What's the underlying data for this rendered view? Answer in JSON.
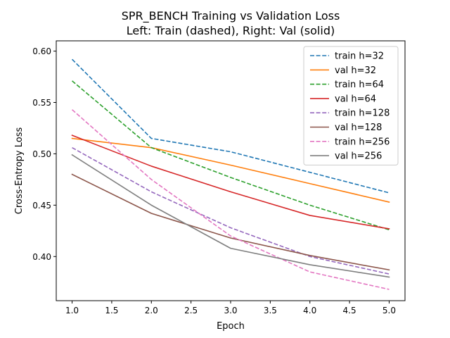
{
  "chart_data": {
    "type": "line",
    "title": "SPR_BENCH Training vs Validation Loss",
    "subtitle": "Left: Train (dashed), Right: Val (solid)",
    "xlabel": "Epoch",
    "ylabel": "Cross-Entropy Loss",
    "xlim": [
      0.8,
      5.2
    ],
    "ylim": [
      0.357,
      0.61
    ],
    "x_ticks": [
      "1.0",
      "1.5",
      "2.0",
      "2.5",
      "3.0",
      "3.5",
      "4.0",
      "4.5",
      "5.0"
    ],
    "y_ticks": [
      "0.40",
      "0.45",
      "0.50",
      "0.55",
      "0.60"
    ],
    "grid": false,
    "legend_position": "top-right",
    "x": [
      1,
      2,
      3,
      4,
      5
    ],
    "series": [
      {
        "name": "train h=32",
        "style": "dashed",
        "color": "#1f77b4",
        "values": [
          0.592,
          0.515,
          0.502,
          0.482,
          0.462
        ]
      },
      {
        "name": "val h=32",
        "style": "solid",
        "color": "#ff7f0e",
        "values": [
          0.515,
          0.506,
          0.489,
          0.471,
          0.453
        ]
      },
      {
        "name": "train h=64",
        "style": "dashed",
        "color": "#2ca02c",
        "values": [
          0.571,
          0.506,
          0.477,
          0.45,
          0.426
        ]
      },
      {
        "name": "val h=64",
        "style": "solid",
        "color": "#d62728",
        "values": [
          0.518,
          0.488,
          0.463,
          0.44,
          0.427
        ]
      },
      {
        "name": "train h=128",
        "style": "dashed",
        "color": "#9467bd",
        "values": [
          0.506,
          0.463,
          0.428,
          0.4,
          0.383
        ]
      },
      {
        "name": "val h=128",
        "style": "solid",
        "color": "#8c564b",
        "values": [
          0.48,
          0.442,
          0.418,
          0.401,
          0.387
        ]
      },
      {
        "name": "train h=256",
        "style": "dashed",
        "color": "#e377c2",
        "values": [
          0.543,
          0.475,
          0.42,
          0.385,
          0.368
        ]
      },
      {
        "name": "val h=256",
        "style": "solid",
        "color": "#7f7f7f",
        "values": [
          0.499,
          0.45,
          0.408,
          0.392,
          0.38
        ]
      }
    ]
  }
}
